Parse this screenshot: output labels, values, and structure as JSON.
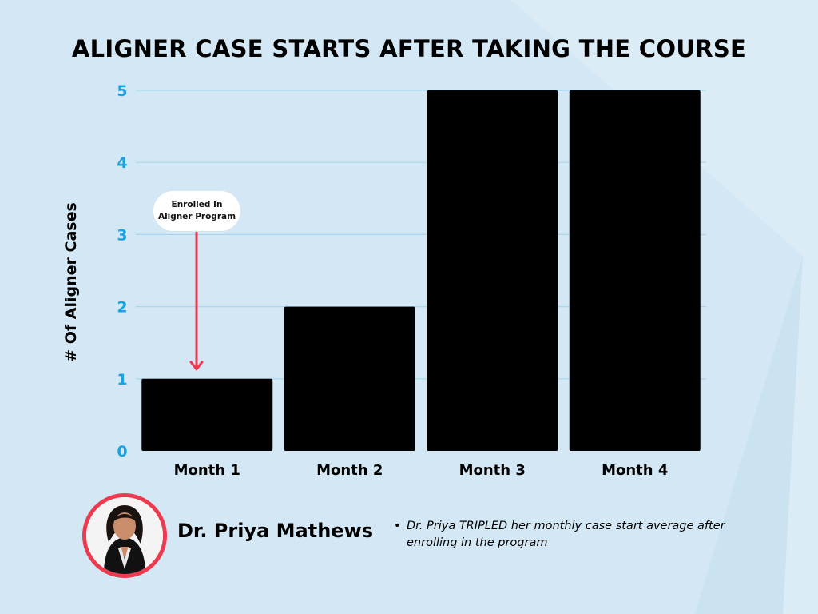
{
  "colors": {
    "background": "#d3e8f4",
    "bar": "#000000",
    "tick": "#1aa3e0",
    "grid": "#a9d6ee",
    "arrow": "#ee3a4f",
    "accent_ring": "#ee3a4f"
  },
  "annotation": {
    "text": "Enrolled In\nAligner Program",
    "category": "Month 1",
    "icon": "down-arrow-icon"
  },
  "person": {
    "name": "Dr. Priya Mathews",
    "photo": "headshot-photo"
  },
  "note": {
    "text": "Dr. Priya TRIPLED her monthly case start average after enrolling in the program"
  },
  "chart_data": {
    "type": "bar",
    "title": "ALIGNER CASE STARTS AFTER TAKING THE COURSE",
    "xlabel": "",
    "ylabel": "# Of Aligner Cases",
    "categories": [
      "Month 1",
      "Month 2",
      "Month 3",
      "Month 4"
    ],
    "values": [
      1,
      2,
      5,
      5
    ],
    "ylim": [
      0,
      5
    ],
    "yticks": [
      0,
      1,
      2,
      3,
      4,
      5
    ],
    "grid": true,
    "legend": "none"
  }
}
